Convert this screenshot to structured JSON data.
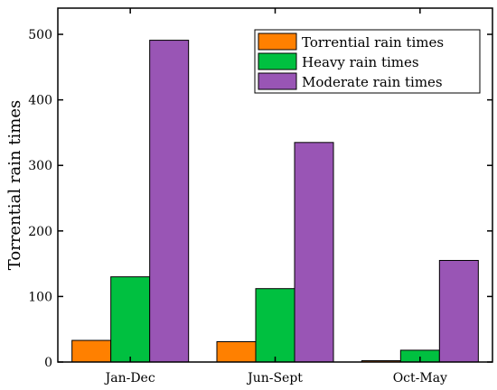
{
  "chart_data": {
    "type": "bar",
    "categories": [
      "Jan-Dec",
      "Jun-Sept",
      "Oct-May"
    ],
    "series": [
      {
        "name": "Torrential rain times",
        "values": [
          33,
          31,
          2
        ],
        "color": "#ff8000"
      },
      {
        "name": "Heavy rain times",
        "values": [
          130,
          112,
          18
        ],
        "color": "#00c040"
      },
      {
        "name": "Moderate rain times",
        "values": [
          491,
          335,
          155
        ],
        "color": "#9955b5"
      }
    ],
    "ylabel": "Torrential rain times",
    "xlabel": "",
    "ylim": [
      0,
      540
    ],
    "yticks": [
      0,
      100,
      200,
      300,
      400,
      500
    ],
    "legend_position": "top-right",
    "grid": false
  }
}
